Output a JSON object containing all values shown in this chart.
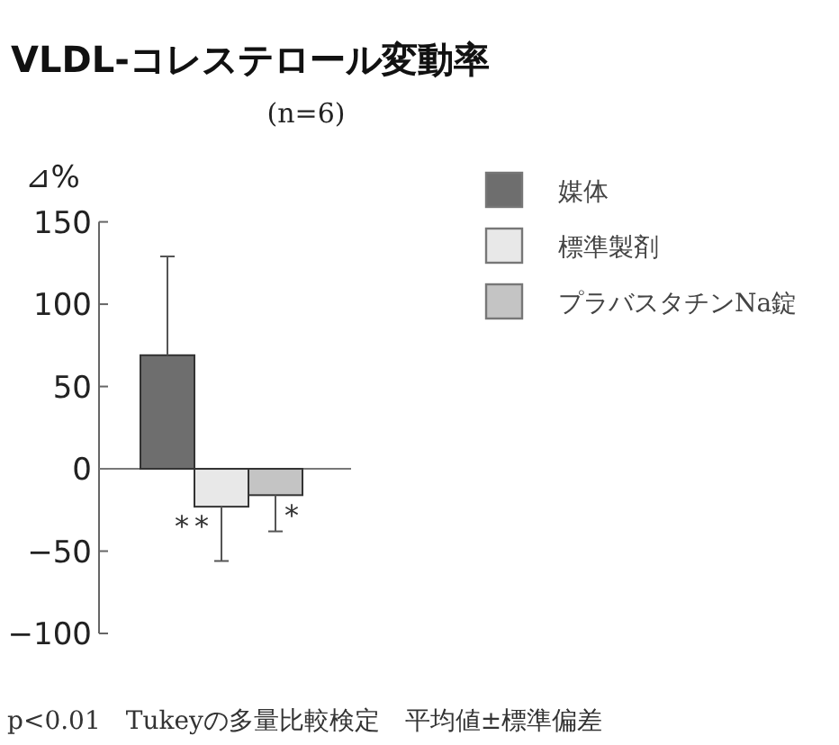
{
  "chart_data": {
    "type": "bar",
    "title": "VLDL-コレステロール変動率",
    "subtitle": "(n=6)",
    "ylabel": "⊿%",
    "categories": [
      null
    ],
    "series": [
      {
        "name": "媒体",
        "color": "#6e6e6e",
        "values": [
          69
        ],
        "errors": [
          [
            69,
            129
          ]
        ]
      },
      {
        "name": "標準製剤",
        "color": "#e8e8e8",
        "values": [
          -23
        ],
        "errors": [
          [
            -56,
            -23
          ]
        ]
      },
      {
        "name": "プラバスタチンNa錠",
        "color": "#c4c4c4",
        "values": [
          -16
        ],
        "errors": [
          [
            -38,
            -16
          ]
        ]
      }
    ],
    "ylim": [
      -100,
      150
    ],
    "yticks": [
      -100,
      -50,
      0,
      50,
      100,
      150
    ],
    "legend": "top right",
    "annotations": [
      "**",
      "*",
      "p<0.01　Tukeyの多量比較検定　平均値±標準偏差"
    ]
  }
}
